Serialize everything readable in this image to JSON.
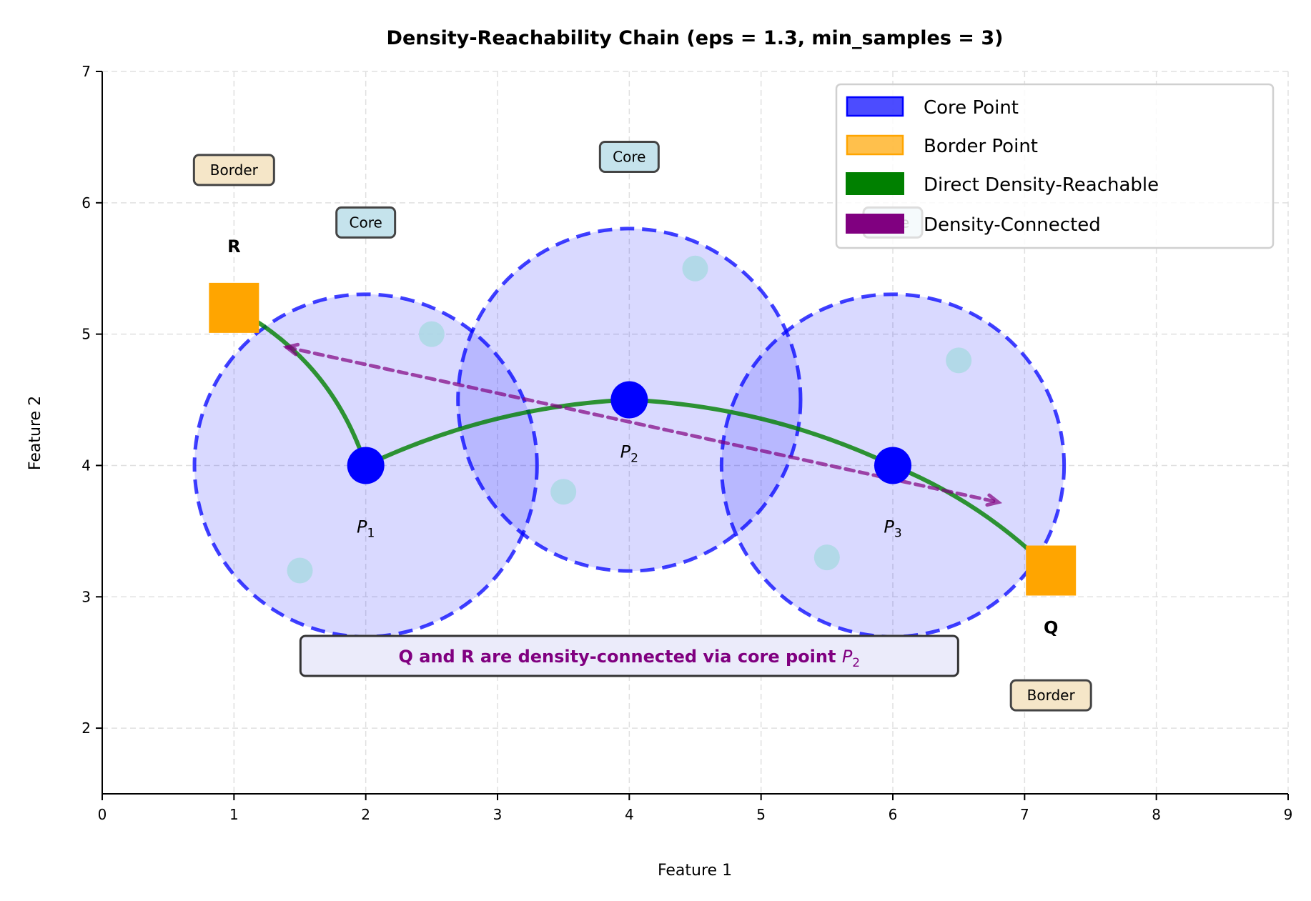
{
  "chart_data": {
    "type": "scatter",
    "title": "Density-Reachability Chain (eps = 1.3, min_samples = 3)",
    "xlabel": "Feature 1",
    "ylabel": "Feature 2",
    "xlim": [
      0,
      9
    ],
    "ylim": [
      1.5,
      7
    ],
    "xticks": [
      "0",
      "1",
      "2",
      "3",
      "4",
      "5",
      "6",
      "7",
      "8",
      "9"
    ],
    "yticks": [
      "2",
      "3",
      "4",
      "5",
      "6",
      "7"
    ],
    "grid": true,
    "eps": 1.3,
    "legend": {
      "placement": "top-right",
      "entries": [
        {
          "label": "Core Point",
          "color": "#0000ff"
        },
        {
          "label": "Border Point",
          "color": "#ffa500"
        },
        {
          "label": "Direct Density-Reachable",
          "color": "#008000"
        },
        {
          "label": "Density-Connected",
          "color": "#800080"
        }
      ]
    },
    "core_points": [
      {
        "name": "P1",
        "label": "P",
        "sub": "1",
        "x": 2,
        "y": 4
      },
      {
        "name": "P2",
        "label": "P",
        "sub": "2",
        "x": 4,
        "y": 4.5
      },
      {
        "name": "P3",
        "label": "P",
        "sub": "3",
        "x": 6,
        "y": 4
      }
    ],
    "border_points": [
      {
        "name": "R",
        "label": "R",
        "x": 1,
        "y": 5.2
      },
      {
        "name": "Q",
        "label": "Q",
        "x": 7.2,
        "y": 3.2
      }
    ],
    "other_points": [
      {
        "x": 2.5,
        "y": 5.0
      },
      {
        "x": 1.5,
        "y": 3.2
      },
      {
        "x": 3.5,
        "y": 3.8
      },
      {
        "x": 4.5,
        "y": 5.5
      },
      {
        "x": 5.5,
        "y": 3.3
      },
      {
        "x": 6.5,
        "y": 4.8
      }
    ],
    "reachable_links": [
      {
        "from": "R",
        "to": "P1",
        "curvature": -0.2
      },
      {
        "from": "P1",
        "to": "P2",
        "curvature": -0.1
      },
      {
        "from": "P2",
        "to": "P3",
        "curvature": -0.1
      },
      {
        "from": "P3",
        "to": "Q",
        "curvature": -0.1
      }
    ],
    "connected_arrow": {
      "from": [
        1.4,
        4.9
      ],
      "to": [
        6.8,
        3.72
      ],
      "style": "double-headed dashed"
    },
    "type_labels": [
      {
        "text": "Border",
        "x": 1,
        "y": 6.25,
        "kind": "border"
      },
      {
        "text": "Core",
        "x": 2,
        "y": 5.85,
        "kind": "core"
      },
      {
        "text": "Core",
        "x": 4,
        "y": 6.35,
        "kind": "core"
      },
      {
        "text": "Core",
        "x": 6,
        "y": 5.85,
        "kind": "core"
      },
      {
        "text": "Border",
        "x": 7.2,
        "y": 2.25,
        "kind": "border"
      }
    ],
    "annotation": {
      "text": "Q and R are density-connected via core point ",
      "math": "P",
      "sub": "2",
      "x": 4,
      "y": 2.55,
      "color": "#800080"
    }
  }
}
